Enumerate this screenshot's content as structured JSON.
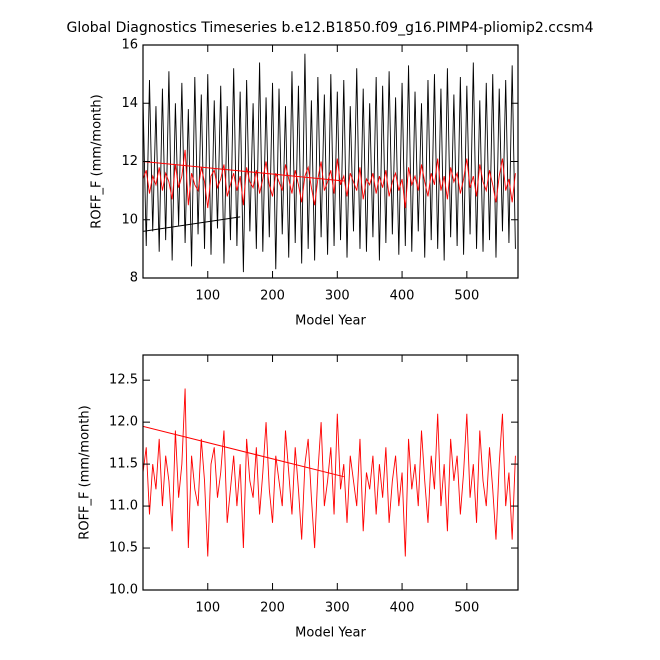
{
  "chart_data": [
    {
      "type": "line",
      "title": "Global Diagnostics Timeseries b.e12.B1850.f09_g16.PIMP4-pliomip2.ccsm4",
      "xlabel": "Model Year",
      "ylabel": "ROFF_F (mm/month)",
      "xlim": [
        0,
        579
      ],
      "xticks": [
        100,
        200,
        300,
        400,
        500
      ],
      "ylim": [
        8,
        16
      ],
      "yticks": [
        8,
        10,
        12,
        14,
        16
      ],
      "x": [
        0,
        5,
        10,
        15,
        20,
        25,
        30,
        35,
        40,
        45,
        50,
        55,
        60,
        65,
        70,
        75,
        80,
        85,
        90,
        95,
        100,
        105,
        110,
        115,
        120,
        125,
        130,
        135,
        140,
        145,
        150,
        155,
        160,
        165,
        170,
        175,
        180,
        185,
        190,
        195,
        200,
        205,
        210,
        215,
        220,
        225,
        230,
        235,
        240,
        245,
        250,
        255,
        260,
        265,
        270,
        275,
        280,
        285,
        290,
        295,
        300,
        305,
        310,
        315,
        320,
        325,
        330,
        335,
        340,
        345,
        350,
        355,
        360,
        365,
        370,
        375,
        380,
        385,
        390,
        395,
        400,
        405,
        410,
        415,
        420,
        425,
        430,
        435,
        440,
        445,
        450,
        455,
        460,
        465,
        470,
        475,
        480,
        485,
        490,
        495,
        500,
        505,
        510,
        515,
        520,
        525,
        530,
        535,
        540,
        545,
        550,
        555,
        560,
        565,
        570,
        575
      ],
      "series": [
        {
          "color": "#000000",
          "values": [
            14.2,
            9.1,
            14.8,
            9.6,
            13.9,
            8.9,
            14.5,
            9.3,
            15.1,
            8.6,
            14.0,
            9.8,
            14.7,
            9.2,
            13.8,
            8.4,
            14.9,
            9.5,
            14.3,
            9.0,
            15.0,
            8.8,
            14.1,
            9.7,
            14.6,
            8.5,
            13.9,
            9.3,
            15.2,
            9.1,
            14.4,
            8.2,
            14.8,
            9.6,
            14.0,
            9.0,
            15.4,
            8.9,
            14.2,
            9.4,
            14.7,
            8.3,
            14.5,
            9.5,
            13.9,
            8.7,
            15.1,
            9.2,
            14.6,
            8.5,
            15.7,
            9.0,
            14.1,
            8.6,
            14.9,
            9.4,
            14.3,
            8.8,
            15.0,
            9.1,
            14.4,
            9.3,
            14.8,
            8.7,
            13.9,
            9.6,
            15.2,
            9.0,
            14.5,
            8.9,
            14.0,
            9.4,
            14.9,
            8.6,
            14.6,
            9.2,
            15.1,
            9.5,
            14.2,
            8.8,
            14.7,
            9.1,
            15.3,
            8.9,
            14.4,
            9.6,
            14.0,
            8.7,
            14.8,
            9.3,
            15.0,
            9.0,
            14.5,
            8.6,
            15.2,
            9.4,
            14.3,
            9.1,
            14.9,
            8.8,
            14.6,
            9.5,
            15.4,
            9.0,
            14.1,
            8.9,
            14.7,
            9.3,
            15.0,
            8.7,
            14.5,
            9.6,
            14.8,
            9.2,
            15.3,
            9.0
          ]
        },
        {
          "color": "#ff0000",
          "values": [
            11.4,
            11.7,
            10.9,
            11.5,
            11.2,
            11.8,
            11.0,
            11.6,
            11.3,
            10.7,
            11.9,
            11.1,
            11.5,
            12.4,
            10.5,
            11.6,
            11.2,
            11.0,
            11.8,
            11.3,
            10.4,
            11.5,
            11.7,
            11.1,
            11.4,
            11.9,
            10.8,
            11.2,
            11.6,
            11.0,
            11.5,
            10.5,
            11.8,
            11.3,
            11.1,
            11.7,
            10.9,
            11.4,
            12.0,
            11.2,
            10.8,
            11.6,
            11.3,
            11.0,
            11.9,
            11.4,
            10.9,
            11.7,
            11.2,
            10.6,
            11.5,
            11.8,
            11.1,
            10.5,
            11.4,
            12.0,
            11.0,
            11.3,
            11.7,
            10.9,
            12.1,
            11.2,
            11.5,
            10.8,
            11.6,
            11.3,
            11.0,
            11.8,
            10.7,
            11.4,
            11.2,
            11.6,
            10.9,
            11.5,
            11.1,
            11.7,
            10.8,
            11.3,
            11.6,
            11.0,
            11.4,
            10.4,
            11.8,
            11.2,
            11.5,
            11.0,
            11.9,
            11.3,
            10.8,
            11.6,
            11.2,
            12.1,
            11.0,
            11.5,
            10.7,
            11.8,
            11.3,
            11.6,
            10.9,
            11.4,
            12.1,
            11.1,
            11.5,
            10.8,
            11.9,
            11.3,
            11.0,
            11.7,
            11.2,
            10.6,
            11.5,
            12.1,
            11.0,
            11.4,
            10.6,
            11.6
          ]
        }
      ],
      "trend_lines": [
        {
          "color": "#ff0000",
          "x": [
            0,
            310
          ],
          "values": [
            12.0,
            11.33
          ]
        },
        {
          "color": "#000000",
          "x": [
            0,
            150
          ],
          "values": [
            9.6,
            10.1
          ]
        }
      ]
    },
    {
      "type": "line",
      "xlabel": "Model Year",
      "ylabel": "ROFF_F (mm/month)",
      "xlim": [
        0,
        579
      ],
      "xticks": [
        100,
        200,
        300,
        400,
        500
      ],
      "ylim": [
        10,
        12.8
      ],
      "yticks": [
        {
          "value": 10,
          "label": "10.0"
        },
        {
          "value": 10.5,
          "label": "10.5"
        },
        {
          "value": 11,
          "label": "11.0"
        },
        {
          "value": 11.5,
          "label": "11.5"
        },
        {
          "value": 12,
          "label": "12.0"
        },
        {
          "value": 12.5,
          "label": "12.5"
        }
      ],
      "x": [
        0,
        5,
        10,
        15,
        20,
        25,
        30,
        35,
        40,
        45,
        50,
        55,
        60,
        65,
        70,
        75,
        80,
        85,
        90,
        95,
        100,
        105,
        110,
        115,
        120,
        125,
        130,
        135,
        140,
        145,
        150,
        155,
        160,
        165,
        170,
        175,
        180,
        185,
        190,
        195,
        200,
        205,
        210,
        215,
        220,
        225,
        230,
        235,
        240,
        245,
        250,
        255,
        260,
        265,
        270,
        275,
        280,
        285,
        290,
        295,
        300,
        305,
        310,
        315,
        320,
        325,
        330,
        335,
        340,
        345,
        350,
        355,
        360,
        365,
        370,
        375,
        380,
        385,
        390,
        395,
        400,
        405,
        410,
        415,
        420,
        425,
        430,
        435,
        440,
        445,
        450,
        455,
        460,
        465,
        470,
        475,
        480,
        485,
        490,
        495,
        500,
        505,
        510,
        515,
        520,
        525,
        530,
        535,
        540,
        545,
        550,
        555,
        560,
        565,
        570,
        575
      ],
      "series": [
        {
          "color": "#ff0000",
          "values": [
            11.4,
            11.7,
            10.9,
            11.5,
            11.2,
            11.8,
            11.0,
            11.6,
            11.3,
            10.7,
            11.9,
            11.1,
            11.5,
            12.4,
            10.5,
            11.6,
            11.2,
            11.0,
            11.8,
            11.3,
            10.4,
            11.5,
            11.7,
            11.1,
            11.4,
            11.9,
            10.8,
            11.2,
            11.6,
            11.0,
            11.5,
            10.5,
            11.8,
            11.3,
            11.1,
            11.7,
            10.9,
            11.4,
            12.0,
            11.2,
            10.8,
            11.6,
            11.3,
            11.0,
            11.9,
            11.4,
            10.9,
            11.7,
            11.2,
            10.6,
            11.5,
            11.8,
            11.1,
            10.5,
            11.4,
            12.0,
            11.0,
            11.3,
            11.7,
            10.9,
            12.1,
            11.2,
            11.5,
            10.8,
            11.6,
            11.3,
            11.0,
            11.8,
            10.7,
            11.4,
            11.2,
            11.6,
            10.9,
            11.5,
            11.1,
            11.7,
            10.8,
            11.3,
            11.6,
            11.0,
            11.4,
            10.4,
            11.8,
            11.2,
            11.5,
            11.0,
            11.9,
            11.3,
            10.8,
            11.6,
            11.2,
            12.1,
            11.0,
            11.5,
            10.7,
            11.8,
            11.3,
            11.6,
            10.9,
            11.4,
            12.1,
            11.1,
            11.5,
            10.8,
            11.9,
            11.3,
            11.0,
            11.7,
            11.2,
            10.6,
            11.5,
            12.1,
            11.0,
            11.4,
            10.6,
            11.6
          ]
        }
      ],
      "trend_lines": [
        {
          "color": "#ff0000",
          "x": [
            0,
            310
          ],
          "values": [
            11.95,
            11.35
          ]
        }
      ]
    }
  ]
}
